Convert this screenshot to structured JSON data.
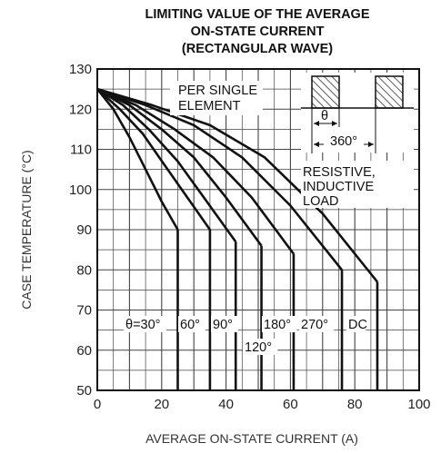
{
  "chart_data": {
    "type": "line",
    "title_lines": [
      "LIMITING VALUE OF THE AVERAGE",
      "ON-STATE CURRENT",
      "(RECTANGULAR WAVE)"
    ],
    "xlabel": "AVERAGE ON-STATE CURRENT (A)",
    "ylabel": "CASE TEMPERATURE (°C)",
    "xlim": [
      0,
      100
    ],
    "ylim": [
      50,
      130
    ],
    "xticks": [
      0,
      20,
      40,
      60,
      80,
      100
    ],
    "yticks": [
      50,
      60,
      70,
      80,
      90,
      100,
      110,
      120,
      130
    ],
    "grid": true,
    "series": [
      {
        "label": "θ=30°",
        "knee_current": 25,
        "min_case_temp": 90,
        "points": [
          [
            0,
            125
          ],
          [
            5,
            120
          ],
          [
            10,
            113
          ],
          [
            15,
            105
          ],
          [
            20,
            97
          ],
          [
            25,
            90
          ]
        ]
      },
      {
        "label": "60°",
        "knee_current": 35,
        "min_case_temp": 90,
        "points": [
          [
            0,
            125
          ],
          [
            7,
            120
          ],
          [
            14,
            114
          ],
          [
            21,
            106
          ],
          [
            28,
            98
          ],
          [
            35,
            90
          ]
        ]
      },
      {
        "label": "90°",
        "knee_current": 43,
        "min_case_temp": 87,
        "points": [
          [
            0,
            125
          ],
          [
            8,
            121
          ],
          [
            16,
            115
          ],
          [
            25,
            107
          ],
          [
            34,
            97
          ],
          [
            43,
            87
          ]
        ]
      },
      {
        "label": "120°",
        "knee_current": 51,
        "min_case_temp": 86,
        "points": [
          [
            0,
            125
          ],
          [
            10,
            121
          ],
          [
            20,
            115
          ],
          [
            30,
            108
          ],
          [
            40,
            98
          ],
          [
            51,
            86
          ]
        ]
      },
      {
        "label": "180°",
        "knee_current": 61,
        "min_case_temp": 84,
        "points": [
          [
            0,
            125
          ],
          [
            12,
            121
          ],
          [
            24,
            115
          ],
          [
            36,
            108
          ],
          [
            48,
            98
          ],
          [
            61,
            84
          ]
        ]
      },
      {
        "label": "270°",
        "knee_current": 76,
        "min_case_temp": 80,
        "points": [
          [
            0,
            125
          ],
          [
            15,
            121
          ],
          [
            30,
            116
          ],
          [
            45,
            108
          ],
          [
            60,
            96
          ],
          [
            76,
            80
          ]
        ]
      },
      {
        "label": "DC",
        "knee_current": 87,
        "min_case_temp": 77,
        "points": [
          [
            0,
            125
          ],
          [
            17,
            121
          ],
          [
            35,
            116
          ],
          [
            52,
            108
          ],
          [
            70,
            94
          ],
          [
            87,
            77
          ]
        ]
      }
    ],
    "annotations": {
      "element_label": [
        "PER SINGLE",
        "ELEMENT"
      ],
      "load_label": [
        "RESISTIVE,",
        "INDUCTIVE",
        "LOAD"
      ],
      "waveform_theta": "θ",
      "waveform_period": "360°"
    },
    "colors": {
      "line": "#111111",
      "grid": "#444444",
      "hatch": "#333333"
    }
  }
}
